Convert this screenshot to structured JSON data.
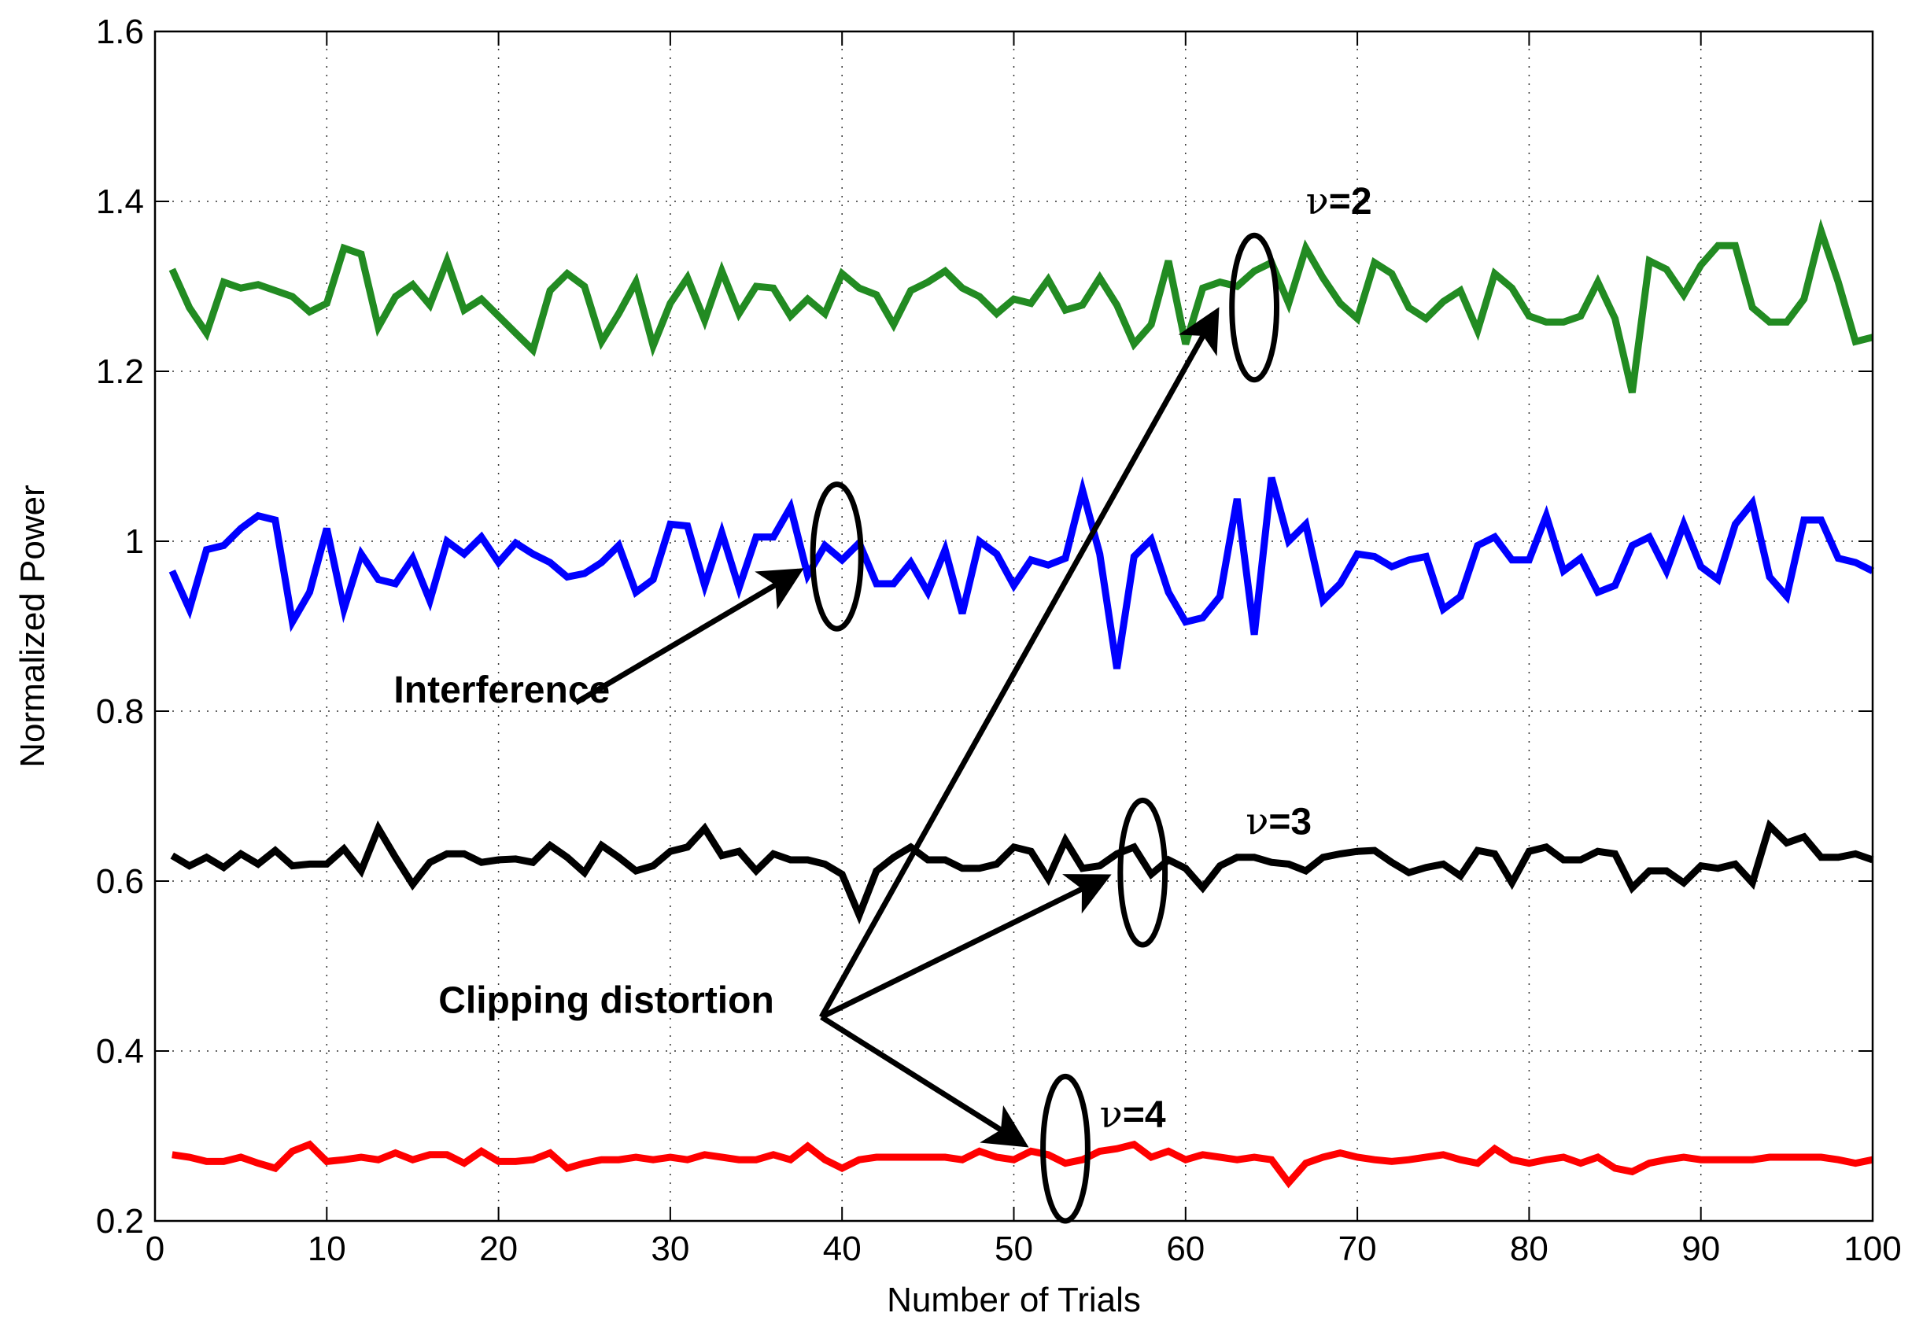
{
  "chart_data": {
    "type": "line",
    "title": "",
    "xlabel": "Number of Trials",
    "ylabel": "Normalized Power",
    "xlim": [
      0,
      100
    ],
    "ylim": [
      0.2,
      1.6
    ],
    "xticks": [
      0,
      10,
      20,
      30,
      40,
      50,
      60,
      70,
      80,
      90,
      100
    ],
    "xtick_labels": [
      "0",
      "10",
      "20",
      "30",
      "40",
      "50",
      "60",
      "70",
      "80",
      "90",
      "100"
    ],
    "yticks": [
      0.2,
      0.4,
      0.6,
      0.8,
      1.0,
      1.2,
      1.4,
      1.6
    ],
    "ytick_labels": [
      "0.2",
      "0.4",
      "0.6",
      "0.8",
      "1",
      "1.2",
      "1.4",
      "1.6"
    ],
    "grid": true,
    "series": [
      {
        "name": "v=2",
        "color": "#228b22",
        "x": [
          1,
          2,
          3,
          4,
          5,
          6,
          7,
          8,
          9,
          10,
          11,
          12,
          13,
          14,
          15,
          16,
          17,
          18,
          19,
          20,
          21,
          22,
          23,
          24,
          25,
          26,
          27,
          28,
          29,
          30,
          31,
          32,
          33,
          34,
          35,
          36,
          37,
          38,
          39,
          40,
          41,
          42,
          43,
          44,
          45,
          46,
          47,
          48,
          49,
          50,
          51,
          52,
          53,
          54,
          55,
          56,
          57,
          58,
          59,
          60,
          61,
          62,
          63,
          64,
          65,
          66,
          67,
          68,
          69,
          70,
          71,
          72,
          73,
          74,
          75,
          76,
          77,
          78,
          79,
          80,
          81,
          82,
          83,
          84,
          85,
          86,
          87,
          88,
          89,
          90,
          91,
          92,
          93,
          94,
          95,
          96,
          97,
          98,
          99,
          100
        ],
        "values": [
          1.32,
          1.275,
          1.245,
          1.305,
          1.298,
          1.302,
          1.295,
          1.288,
          1.27,
          1.28,
          1.345,
          1.338,
          1.252,
          1.288,
          1.302,
          1.278,
          1.33,
          1.272,
          1.285,
          1.265,
          1.245,
          1.225,
          1.295,
          1.315,
          1.3,
          1.235,
          1.268,
          1.305,
          1.23,
          1.28,
          1.31,
          1.26,
          1.318,
          1.268,
          1.3,
          1.298,
          1.265,
          1.285,
          1.268,
          1.315,
          1.298,
          1.29,
          1.255,
          1.295,
          1.305,
          1.318,
          1.298,
          1.288,
          1.268,
          1.285,
          1.28,
          1.308,
          1.272,
          1.278,
          1.31,
          1.278,
          1.232,
          1.255,
          1.33,
          1.232,
          1.298,
          1.305,
          1.3,
          1.318,
          1.328,
          1.28,
          1.345,
          1.31,
          1.28,
          1.262,
          1.328,
          1.315,
          1.275,
          1.262,
          1.282,
          1.295,
          1.248,
          1.315,
          1.298,
          1.265,
          1.258,
          1.258,
          1.265,
          1.305,
          1.262,
          1.175,
          1.33,
          1.32,
          1.29,
          1.325,
          1.348,
          1.348,
          1.275,
          1.258,
          1.258,
          1.285,
          1.365,
          1.305,
          1.235,
          1.24
        ]
      },
      {
        "name": "Interference",
        "color": "#0000ff",
        "x": [
          1,
          2,
          3,
          4,
          5,
          6,
          7,
          8,
          9,
          10,
          11,
          12,
          13,
          14,
          15,
          16,
          17,
          18,
          19,
          20,
          21,
          22,
          23,
          24,
          25,
          26,
          27,
          28,
          29,
          30,
          31,
          32,
          33,
          34,
          35,
          36,
          37,
          38,
          39,
          40,
          41,
          42,
          43,
          44,
          45,
          46,
          47,
          48,
          49,
          50,
          51,
          52,
          53,
          54,
          55,
          56,
          57,
          58,
          59,
          60,
          61,
          62,
          63,
          64,
          65,
          66,
          67,
          68,
          69,
          70,
          71,
          72,
          73,
          74,
          75,
          76,
          77,
          78,
          79,
          80,
          81,
          82,
          83,
          84,
          85,
          86,
          87,
          88,
          89,
          90,
          91,
          92,
          93,
          94,
          95,
          96,
          97,
          98,
          99,
          100
        ],
        "values": [
          0.965,
          0.92,
          0.99,
          0.995,
          1.015,
          1.03,
          1.025,
          0.905,
          0.94,
          1.015,
          0.92,
          0.985,
          0.955,
          0.95,
          0.98,
          0.93,
          1.0,
          0.985,
          1.005,
          0.975,
          0.998,
          0.985,
          0.975,
          0.958,
          0.962,
          0.975,
          0.995,
          0.94,
          0.955,
          1.02,
          1.018,
          0.948,
          1.01,
          0.945,
          1.005,
          1.005,
          1.04,
          0.96,
          0.995,
          0.978,
          0.998,
          0.95,
          0.95,
          0.975,
          0.94,
          0.99,
          0.915,
          1.0,
          0.985,
          0.948,
          0.978,
          0.972,
          0.98,
          1.06,
          0.985,
          0.85,
          0.982,
          1.002,
          0.94,
          0.905,
          0.91,
          0.935,
          1.05,
          0.89,
          1.075,
          1.0,
          1.02,
          0.93,
          0.95,
          0.985,
          0.982,
          0.97,
          0.978,
          0.982,
          0.92,
          0.935,
          0.995,
          1.005,
          0.978,
          0.978,
          1.03,
          0.965,
          0.98,
          0.94,
          0.948,
          0.995,
          1.005,
          0.965,
          1.02,
          0.97,
          0.955,
          1.02,
          1.045,
          0.958,
          0.935,
          1.025,
          1.025,
          0.98,
          0.975,
          0.965
        ]
      },
      {
        "name": "v=3",
        "color": "#000000",
        "x": [
          1,
          2,
          3,
          4,
          5,
          6,
          7,
          8,
          9,
          10,
          11,
          12,
          13,
          14,
          15,
          16,
          17,
          18,
          19,
          20,
          21,
          22,
          23,
          24,
          25,
          26,
          27,
          28,
          29,
          30,
          31,
          32,
          33,
          34,
          35,
          36,
          37,
          38,
          39,
          40,
          41,
          42,
          43,
          44,
          45,
          46,
          47,
          48,
          49,
          50,
          51,
          52,
          53,
          54,
          55,
          56,
          57,
          58,
          59,
          60,
          61,
          62,
          63,
          64,
          65,
          66,
          67,
          68,
          69,
          70,
          71,
          72,
          73,
          74,
          75,
          76,
          77,
          78,
          79,
          80,
          81,
          82,
          83,
          84,
          85,
          86,
          87,
          88,
          89,
          90,
          91,
          92,
          93,
          94,
          95,
          96,
          97,
          98,
          99,
          100
        ],
        "values": [
          0.63,
          0.618,
          0.628,
          0.616,
          0.632,
          0.62,
          0.636,
          0.618,
          0.62,
          0.62,
          0.638,
          0.612,
          0.662,
          0.628,
          0.596,
          0.622,
          0.632,
          0.632,
          0.622,
          0.625,
          0.626,
          0.622,
          0.642,
          0.628,
          0.61,
          0.642,
          0.628,
          0.612,
          0.618,
          0.635,
          0.64,
          0.662,
          0.63,
          0.635,
          0.612,
          0.632,
          0.625,
          0.625,
          0.62,
          0.608,
          0.56,
          0.612,
          0.628,
          0.64,
          0.625,
          0.625,
          0.615,
          0.615,
          0.62,
          0.64,
          0.635,
          0.603,
          0.648,
          0.615,
          0.618,
          0.632,
          0.64,
          0.608,
          0.625,
          0.615,
          0.592,
          0.618,
          0.628,
          0.628,
          0.622,
          0.62,
          0.612,
          0.628,
          0.632,
          0.635,
          0.636,
          0.622,
          0.61,
          0.616,
          0.62,
          0.606,
          0.636,
          0.632,
          0.598,
          0.635,
          0.64,
          0.625,
          0.625,
          0.635,
          0.632,
          0.592,
          0.612,
          0.612,
          0.598,
          0.618,
          0.615,
          0.62,
          0.598,
          0.665,
          0.645,
          0.652,
          0.628,
          0.628,
          0.632,
          0.625
        ]
      },
      {
        "name": "v=4",
        "color": "#ff0000",
        "x": [
          1,
          2,
          3,
          4,
          5,
          6,
          7,
          8,
          9,
          10,
          11,
          12,
          13,
          14,
          15,
          16,
          17,
          18,
          19,
          20,
          21,
          22,
          23,
          24,
          25,
          26,
          27,
          28,
          29,
          30,
          31,
          32,
          33,
          34,
          35,
          36,
          37,
          38,
          39,
          40,
          41,
          42,
          43,
          44,
          45,
          46,
          47,
          48,
          49,
          50,
          51,
          52,
          53,
          54,
          55,
          56,
          57,
          58,
          59,
          60,
          61,
          62,
          63,
          64,
          65,
          66,
          67,
          68,
          69,
          70,
          71,
          72,
          73,
          74,
          75,
          76,
          77,
          78,
          79,
          80,
          81,
          82,
          83,
          84,
          85,
          86,
          87,
          88,
          89,
          90,
          91,
          92,
          93,
          94,
          95,
          96,
          97,
          98,
          99,
          100
        ],
        "values": [
          0.278,
          0.275,
          0.27,
          0.27,
          0.275,
          0.268,
          0.262,
          0.282,
          0.29,
          0.27,
          0.272,
          0.275,
          0.272,
          0.28,
          0.272,
          0.278,
          0.278,
          0.268,
          0.282,
          0.27,
          0.27,
          0.272,
          0.28,
          0.262,
          0.268,
          0.272,
          0.272,
          0.275,
          0.272,
          0.275,
          0.272,
          0.278,
          0.275,
          0.272,
          0.272,
          0.278,
          0.272,
          0.288,
          0.272,
          0.262,
          0.272,
          0.275,
          0.275,
          0.275,
          0.275,
          0.275,
          0.272,
          0.282,
          0.275,
          0.272,
          0.282,
          0.278,
          0.268,
          0.272,
          0.282,
          0.285,
          0.29,
          0.275,
          0.282,
          0.272,
          0.278,
          0.275,
          0.272,
          0.275,
          0.272,
          0.245,
          0.268,
          0.275,
          0.28,
          0.275,
          0.272,
          0.27,
          0.272,
          0.275,
          0.278,
          0.272,
          0.268,
          0.285,
          0.272,
          0.268,
          0.272,
          0.275,
          0.268,
          0.275,
          0.262,
          0.258,
          0.268,
          0.272,
          0.275,
          0.272,
          0.272,
          0.272,
          0.272,
          0.275,
          0.275,
          0.275,
          0.275,
          0.272,
          0.268,
          0.272
        ]
      }
    ],
    "annotations": [
      {
        "text": "Interference",
        "at": [
          13.9,
          0.81
        ]
      },
      {
        "text": "Clipping distortion",
        "at": [
          16.5,
          0.445
        ]
      },
      {
        "symbol": "ν",
        "text": "=2",
        "at": [
          67.0,
          1.385
        ]
      },
      {
        "symbol": "ν",
        "text": "=3",
        "at": [
          63.5,
          0.655
        ]
      },
      {
        "symbol": "ν",
        "text": "=4",
        "at": [
          55.0,
          0.31
        ]
      }
    ],
    "ellipses": [
      {
        "center": [
          39.7,
          0.982
        ],
        "half_width": 1.4,
        "half_height": 0.085
      },
      {
        "center": [
          64.0,
          1.275
        ],
        "half_width": 1.3,
        "half_height": 0.085
      },
      {
        "center": [
          57.5,
          0.61
        ],
        "half_width": 1.3,
        "half_height": 0.085
      },
      {
        "center": [
          53.0,
          0.285
        ],
        "half_width": 1.3,
        "half_height": 0.085
      }
    ],
    "arrows": [
      {
        "from": [
          24.5,
          0.81
        ],
        "to": [
          37.5,
          0.965
        ]
      },
      {
        "from": [
          38.8,
          0.44
        ],
        "to": [
          61.8,
          1.27
        ]
      },
      {
        "from": [
          38.8,
          0.44
        ],
        "to": [
          55.4,
          0.605
        ]
      },
      {
        "from": [
          38.8,
          0.44
        ],
        "to": [
          50.6,
          0.29
        ]
      }
    ]
  }
}
